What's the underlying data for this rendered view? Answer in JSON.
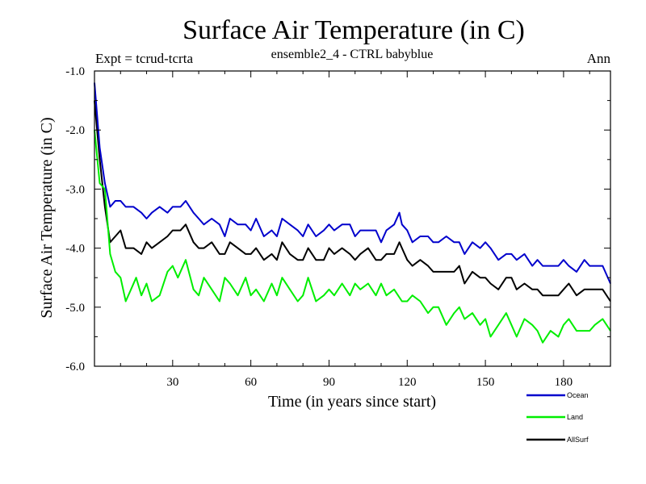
{
  "chart_data": {
    "type": "line",
    "title": "Surface Air Temperature (in C)",
    "subtitle": "ensemble2_4 - CTRL babyblue",
    "left_note": "Expt = tcrud-tcrta",
    "right_note": "Ann",
    "xlabel": "Time (in years since start)",
    "ylabel": "Surface Air Temperature (in C)",
    "xlim": [
      0,
      198
    ],
    "ylim": [
      -6.0,
      -1.0
    ],
    "x_ticks": [
      30,
      60,
      90,
      120,
      150,
      180
    ],
    "x_tick_labels": [
      "30",
      "60",
      "90",
      "120",
      "150",
      "180"
    ],
    "y_ticks": [
      -1.0,
      -2.0,
      -3.0,
      -4.0,
      -5.0,
      -6.0
    ],
    "y_tick_labels": [
      "-1.0",
      "-2.0",
      "-3.0",
      "-4.0",
      "-5.0",
      "-6.0"
    ],
    "grid": false,
    "legend_position": "bottom-right",
    "series": [
      {
        "name": "Ocean",
        "color": "#0000cc",
        "points": [
          [
            0,
            -1.2
          ],
          [
            2,
            -2.3
          ],
          [
            4,
            -2.9
          ],
          [
            6,
            -3.3
          ],
          [
            8,
            -3.2
          ],
          [
            10,
            -3.2
          ],
          [
            12,
            -3.3
          ],
          [
            15,
            -3.3
          ],
          [
            18,
            -3.4
          ],
          [
            20,
            -3.5
          ],
          [
            22,
            -3.4
          ],
          [
            25,
            -3.3
          ],
          [
            28,
            -3.4
          ],
          [
            30,
            -3.3
          ],
          [
            33,
            -3.3
          ],
          [
            35,
            -3.2
          ],
          [
            38,
            -3.4
          ],
          [
            40,
            -3.5
          ],
          [
            42,
            -3.6
          ],
          [
            45,
            -3.5
          ],
          [
            48,
            -3.6
          ],
          [
            50,
            -3.8
          ],
          [
            52,
            -3.5
          ],
          [
            55,
            -3.6
          ],
          [
            58,
            -3.6
          ],
          [
            60,
            -3.7
          ],
          [
            62,
            -3.5
          ],
          [
            65,
            -3.8
          ],
          [
            68,
            -3.7
          ],
          [
            70,
            -3.8
          ],
          [
            72,
            -3.5
          ],
          [
            75,
            -3.6
          ],
          [
            78,
            -3.7
          ],
          [
            80,
            -3.8
          ],
          [
            82,
            -3.6
          ],
          [
            85,
            -3.8
          ],
          [
            88,
            -3.7
          ],
          [
            90,
            -3.6
          ],
          [
            92,
            -3.7
          ],
          [
            95,
            -3.6
          ],
          [
            98,
            -3.6
          ],
          [
            100,
            -3.8
          ],
          [
            102,
            -3.7
          ],
          [
            105,
            -3.7
          ],
          [
            108,
            -3.7
          ],
          [
            110,
            -3.9
          ],
          [
            112,
            -3.7
          ],
          [
            115,
            -3.6
          ],
          [
            117,
            -3.4
          ],
          [
            118,
            -3.6
          ],
          [
            120,
            -3.7
          ],
          [
            122,
            -3.9
          ],
          [
            125,
            -3.8
          ],
          [
            128,
            -3.8
          ],
          [
            130,
            -3.9
          ],
          [
            132,
            -3.9
          ],
          [
            135,
            -3.8
          ],
          [
            138,
            -3.9
          ],
          [
            140,
            -3.9
          ],
          [
            142,
            -4.1
          ],
          [
            145,
            -3.9
          ],
          [
            148,
            -4.0
          ],
          [
            150,
            -3.9
          ],
          [
            152,
            -4.0
          ],
          [
            155,
            -4.2
          ],
          [
            158,
            -4.1
          ],
          [
            160,
            -4.1
          ],
          [
            162,
            -4.2
          ],
          [
            165,
            -4.1
          ],
          [
            168,
            -4.3
          ],
          [
            170,
            -4.2
          ],
          [
            172,
            -4.3
          ],
          [
            175,
            -4.3
          ],
          [
            178,
            -4.3
          ],
          [
            180,
            -4.2
          ],
          [
            182,
            -4.3
          ],
          [
            185,
            -4.4
          ],
          [
            188,
            -4.2
          ],
          [
            190,
            -4.3
          ],
          [
            192,
            -4.3
          ],
          [
            195,
            -4.3
          ],
          [
            198,
            -4.6
          ]
        ]
      },
      {
        "name": "Land",
        "color": "#00ee00",
        "points": [
          [
            0,
            -2.0
          ],
          [
            2,
            -2.9
          ],
          [
            4,
            -3.0
          ],
          [
            6,
            -4.1
          ],
          [
            8,
            -4.4
          ],
          [
            10,
            -4.5
          ],
          [
            12,
            -4.9
          ],
          [
            14,
            -4.7
          ],
          [
            16,
            -4.5
          ],
          [
            18,
            -4.8
          ],
          [
            20,
            -4.6
          ],
          [
            22,
            -4.9
          ],
          [
            25,
            -4.8
          ],
          [
            28,
            -4.4
          ],
          [
            30,
            -4.3
          ],
          [
            32,
            -4.5
          ],
          [
            35,
            -4.2
          ],
          [
            38,
            -4.7
          ],
          [
            40,
            -4.8
          ],
          [
            42,
            -4.5
          ],
          [
            45,
            -4.7
          ],
          [
            48,
            -4.9
          ],
          [
            50,
            -4.5
          ],
          [
            52,
            -4.6
          ],
          [
            55,
            -4.8
          ],
          [
            58,
            -4.5
          ],
          [
            60,
            -4.8
          ],
          [
            62,
            -4.7
          ],
          [
            65,
            -4.9
          ],
          [
            68,
            -4.6
          ],
          [
            70,
            -4.8
          ],
          [
            72,
            -4.5
          ],
          [
            75,
            -4.7
          ],
          [
            78,
            -4.9
          ],
          [
            80,
            -4.8
          ],
          [
            82,
            -4.5
          ],
          [
            85,
            -4.9
          ],
          [
            88,
            -4.8
          ],
          [
            90,
            -4.7
          ],
          [
            92,
            -4.8
          ],
          [
            95,
            -4.6
          ],
          [
            98,
            -4.8
          ],
          [
            100,
            -4.6
          ],
          [
            102,
            -4.7
          ],
          [
            105,
            -4.6
          ],
          [
            108,
            -4.8
          ],
          [
            110,
            -4.6
          ],
          [
            112,
            -4.8
          ],
          [
            115,
            -4.7
          ],
          [
            118,
            -4.9
          ],
          [
            120,
            -4.9
          ],
          [
            122,
            -4.8
          ],
          [
            125,
            -4.9
          ],
          [
            128,
            -5.1
          ],
          [
            130,
            -5.0
          ],
          [
            132,
            -5.0
          ],
          [
            135,
            -5.3
          ],
          [
            138,
            -5.1
          ],
          [
            140,
            -5.0
          ],
          [
            142,
            -5.2
          ],
          [
            145,
            -5.1
          ],
          [
            148,
            -5.3
          ],
          [
            150,
            -5.2
          ],
          [
            152,
            -5.5
          ],
          [
            155,
            -5.3
          ],
          [
            158,
            -5.1
          ],
          [
            160,
            -5.3
          ],
          [
            162,
            -5.5
          ],
          [
            165,
            -5.2
          ],
          [
            168,
            -5.3
          ],
          [
            170,
            -5.4
          ],
          [
            172,
            -5.6
          ],
          [
            175,
            -5.4
          ],
          [
            178,
            -5.5
          ],
          [
            180,
            -5.3
          ],
          [
            182,
            -5.2
          ],
          [
            185,
            -5.4
          ],
          [
            188,
            -5.4
          ],
          [
            190,
            -5.4
          ],
          [
            192,
            -5.3
          ],
          [
            195,
            -5.2
          ],
          [
            198,
            -5.4
          ]
        ]
      },
      {
        "name": "AllSurf",
        "color": "#000000",
        "points": [
          [
            0,
            -1.5
          ],
          [
            2,
            -2.5
          ],
          [
            4,
            -3.3
          ],
          [
            6,
            -3.9
          ],
          [
            8,
            -3.8
          ],
          [
            10,
            -3.7
          ],
          [
            12,
            -4.0
          ],
          [
            15,
            -4.0
          ],
          [
            18,
            -4.1
          ],
          [
            20,
            -3.9
          ],
          [
            22,
            -4.0
          ],
          [
            25,
            -3.9
          ],
          [
            28,
            -3.8
          ],
          [
            30,
            -3.7
          ],
          [
            33,
            -3.7
          ],
          [
            35,
            -3.6
          ],
          [
            38,
            -3.9
          ],
          [
            40,
            -4.0
          ],
          [
            42,
            -4.0
          ],
          [
            45,
            -3.9
          ],
          [
            48,
            -4.1
          ],
          [
            50,
            -4.1
          ],
          [
            52,
            -3.9
          ],
          [
            55,
            -4.0
          ],
          [
            58,
            -4.1
          ],
          [
            60,
            -4.1
          ],
          [
            62,
            -4.0
          ],
          [
            65,
            -4.2
          ],
          [
            68,
            -4.1
          ],
          [
            70,
            -4.2
          ],
          [
            72,
            -3.9
          ],
          [
            75,
            -4.1
          ],
          [
            78,
            -4.2
          ],
          [
            80,
            -4.2
          ],
          [
            82,
            -4.0
          ],
          [
            85,
            -4.2
          ],
          [
            88,
            -4.2
          ],
          [
            90,
            -4.0
          ],
          [
            92,
            -4.1
          ],
          [
            95,
            -4.0
          ],
          [
            98,
            -4.1
          ],
          [
            100,
            -4.2
          ],
          [
            102,
            -4.1
          ],
          [
            105,
            -4.0
          ],
          [
            108,
            -4.2
          ],
          [
            110,
            -4.2
          ],
          [
            112,
            -4.1
          ],
          [
            115,
            -4.1
          ],
          [
            117,
            -3.9
          ],
          [
            118,
            -4.0
          ],
          [
            120,
            -4.2
          ],
          [
            122,
            -4.3
          ],
          [
            125,
            -4.2
          ],
          [
            128,
            -4.3
          ],
          [
            130,
            -4.4
          ],
          [
            132,
            -4.4
          ],
          [
            135,
            -4.4
          ],
          [
            138,
            -4.4
          ],
          [
            140,
            -4.3
          ],
          [
            142,
            -4.6
          ],
          [
            145,
            -4.4
          ],
          [
            148,
            -4.5
          ],
          [
            150,
            -4.5
          ],
          [
            152,
            -4.6
          ],
          [
            155,
            -4.7
          ],
          [
            158,
            -4.5
          ],
          [
            160,
            -4.5
          ],
          [
            162,
            -4.7
          ],
          [
            165,
            -4.6
          ],
          [
            168,
            -4.7
          ],
          [
            170,
            -4.7
          ],
          [
            172,
            -4.8
          ],
          [
            175,
            -4.8
          ],
          [
            178,
            -4.8
          ],
          [
            180,
            -4.7
          ],
          [
            182,
            -4.6
          ],
          [
            185,
            -4.8
          ],
          [
            188,
            -4.7
          ],
          [
            190,
            -4.7
          ],
          [
            192,
            -4.7
          ],
          [
            195,
            -4.7
          ],
          [
            198,
            -4.9
          ]
        ]
      }
    ]
  }
}
